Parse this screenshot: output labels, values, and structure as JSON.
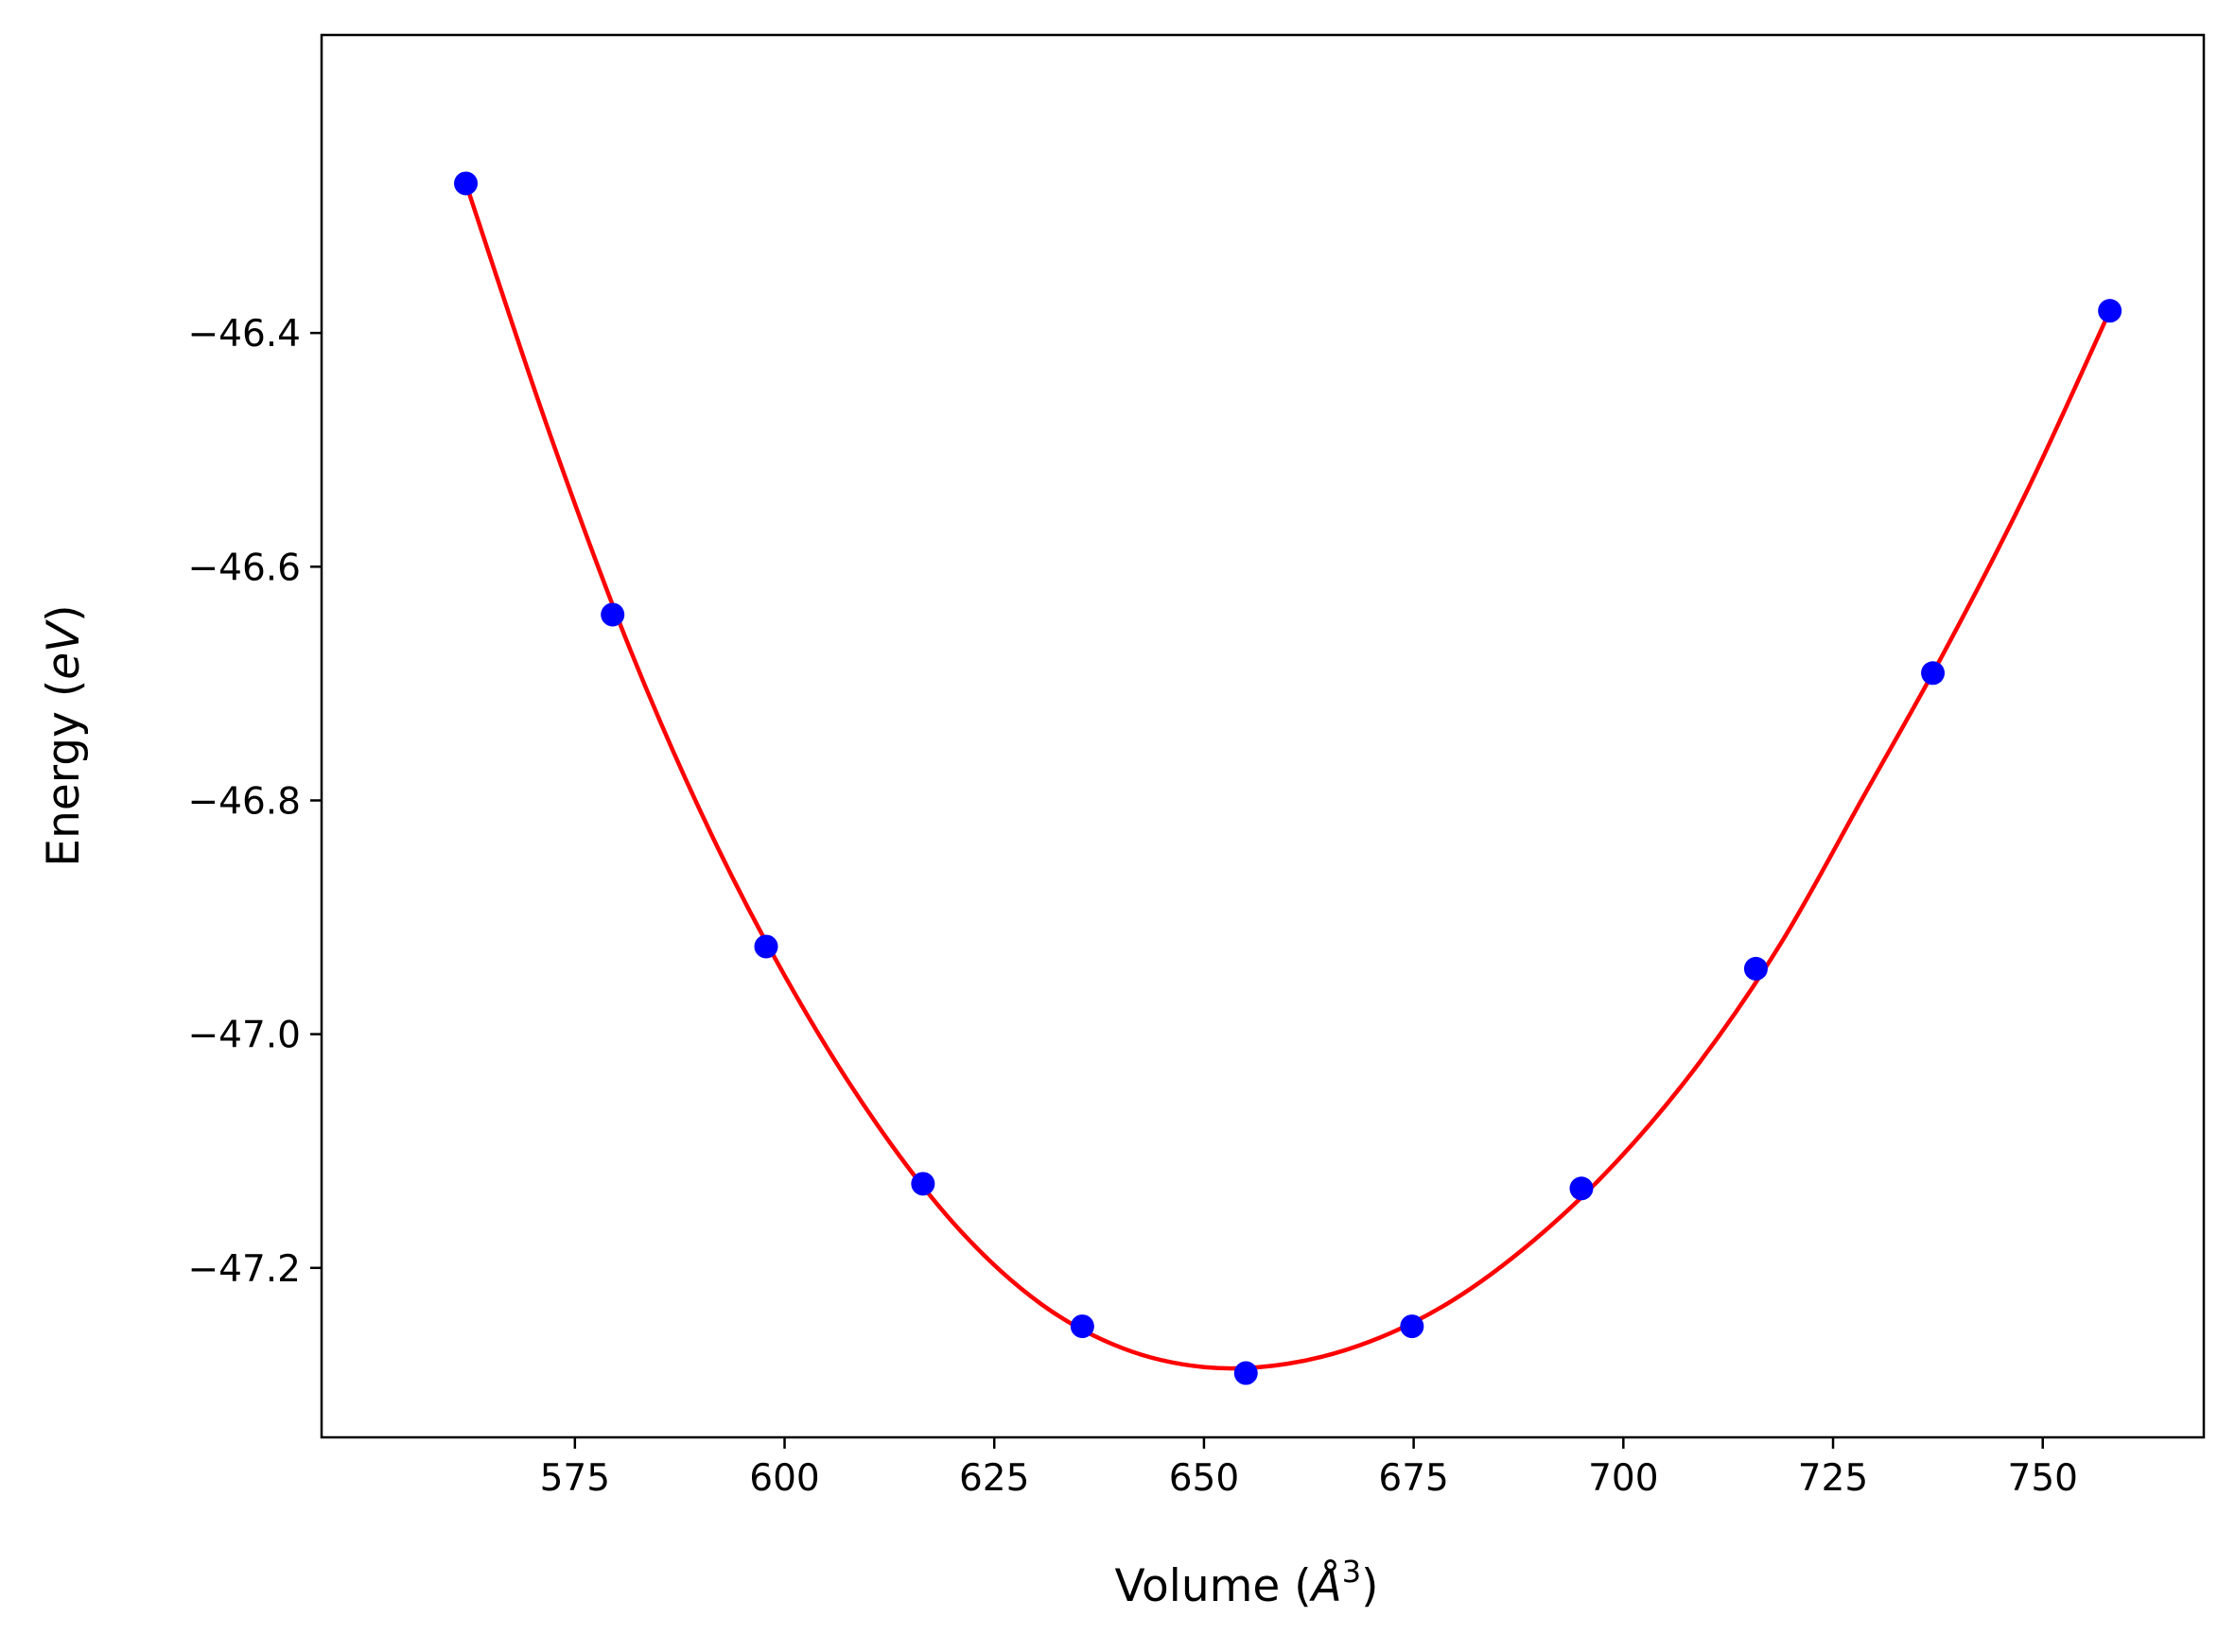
{
  "chart_data": {
    "type": "scatter",
    "title": "",
    "xlabel": {
      "prefix": "Volume (",
      "symbol": "Å",
      "sup": "3",
      "suffix": ")"
    },
    "ylabel": {
      "prefix": "Energy (",
      "symbol": "eV",
      "suffix": ")"
    },
    "xlim": [
      544.8,
      769.2
    ],
    "ylim": [
      -47.345,
      -46.145
    ],
    "xticks": [
      575,
      600,
      625,
      650,
      675,
      700,
      725,
      750
    ],
    "xtick_labels": [
      "575",
      "600",
      "625",
      "650",
      "675",
      "700",
      "725",
      "750"
    ],
    "yticks": [
      -46.4,
      -46.6,
      -46.8,
      -47.0,
      -47.2
    ],
    "ytick_labels": [
      "−46.4",
      "−46.6",
      "−46.8",
      "−47.0",
      "−47.2"
    ],
    "grid": false,
    "series": [
      {
        "kind": "points",
        "color": "#0000ff",
        "x": [
          562.0,
          579.5,
          597.8,
          616.5,
          635.5,
          655.0,
          674.8,
          695.0,
          715.8,
          736.9,
          758.0
        ],
        "y": [
          -46.272,
          -46.641,
          -46.925,
          -47.128,
          -47.25,
          -47.29,
          -47.25,
          -47.132,
          -46.944,
          -46.691,
          -46.381
        ]
      },
      {
        "kind": "fit-curve",
        "color": "#ff0000",
        "x": [
          562.0,
          571.8,
          581.6,
          591.4,
          601.2,
          611.0,
          620.8,
          630.6,
          640.4,
          650.2,
          660.0,
          669.8,
          679.6,
          689.4,
          699.2,
          709.0,
          718.8,
          728.6,
          738.4,
          748.2,
          758.0
        ],
        "y": [
          -46.272,
          -46.482,
          -46.671,
          -46.831,
          -46.965,
          -47.077,
          -47.167,
          -47.231,
          -47.269,
          -47.285,
          -47.282,
          -47.263,
          -47.228,
          -47.176,
          -47.109,
          -47.025,
          -46.922,
          -46.797,
          -46.671,
          -46.534,
          -46.381
        ]
      }
    ]
  }
}
